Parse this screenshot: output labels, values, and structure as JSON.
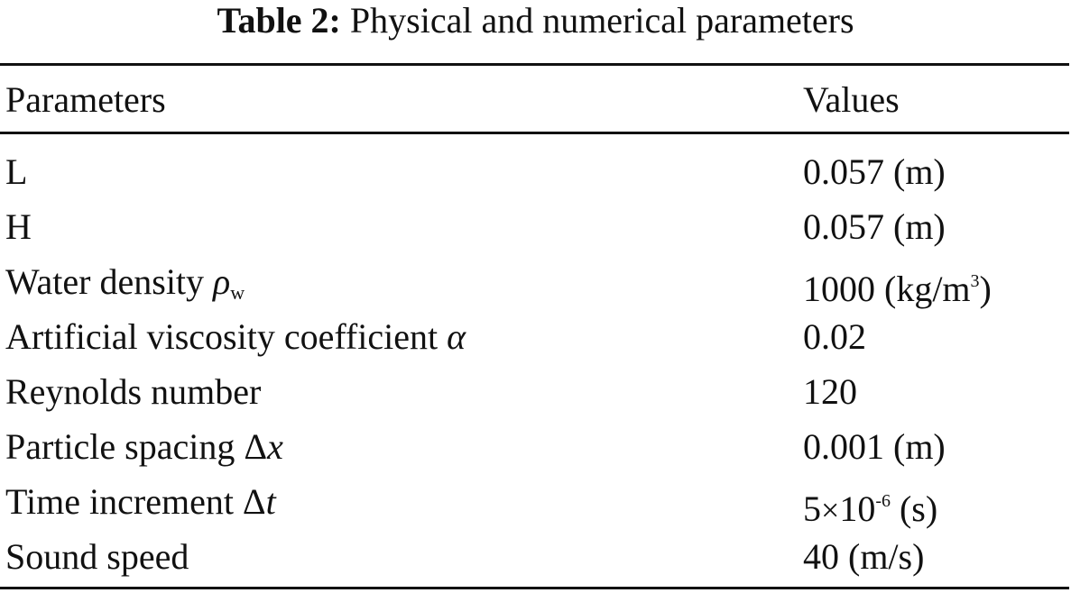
{
  "caption": {
    "label": "Table 2:",
    "text": "Physical and numerical parameters"
  },
  "table": {
    "headers": {
      "parameter": "Parameters",
      "value": "Values"
    },
    "rows": [
      {
        "parameter": "L",
        "value": "0.057 (m)"
      },
      {
        "parameter": "H",
        "value": "0.057 (m)"
      },
      {
        "parameter": "Water density ",
        "symbol": "ρ",
        "symbol_sub": "w",
        "value": "1000 (kg/m",
        "value_sup": "3",
        "value_tail": ")"
      },
      {
        "parameter": "Artificial viscosity coefficient ",
        "symbol": "α",
        "value": "0.02"
      },
      {
        "parameter": "Reynolds number",
        "value": "120"
      },
      {
        "parameter": "Particle spacing Δ",
        "symbol": "x",
        "value": "0.001 (m)"
      },
      {
        "parameter": "Time increment Δ",
        "symbol": "t",
        "value": "5",
        "value_times": "×",
        "value_base": "10",
        "value_sup": "-6",
        "value_tail": " (s)"
      },
      {
        "parameter": "Sound speed",
        "value": "40 (m/s)"
      }
    ]
  }
}
